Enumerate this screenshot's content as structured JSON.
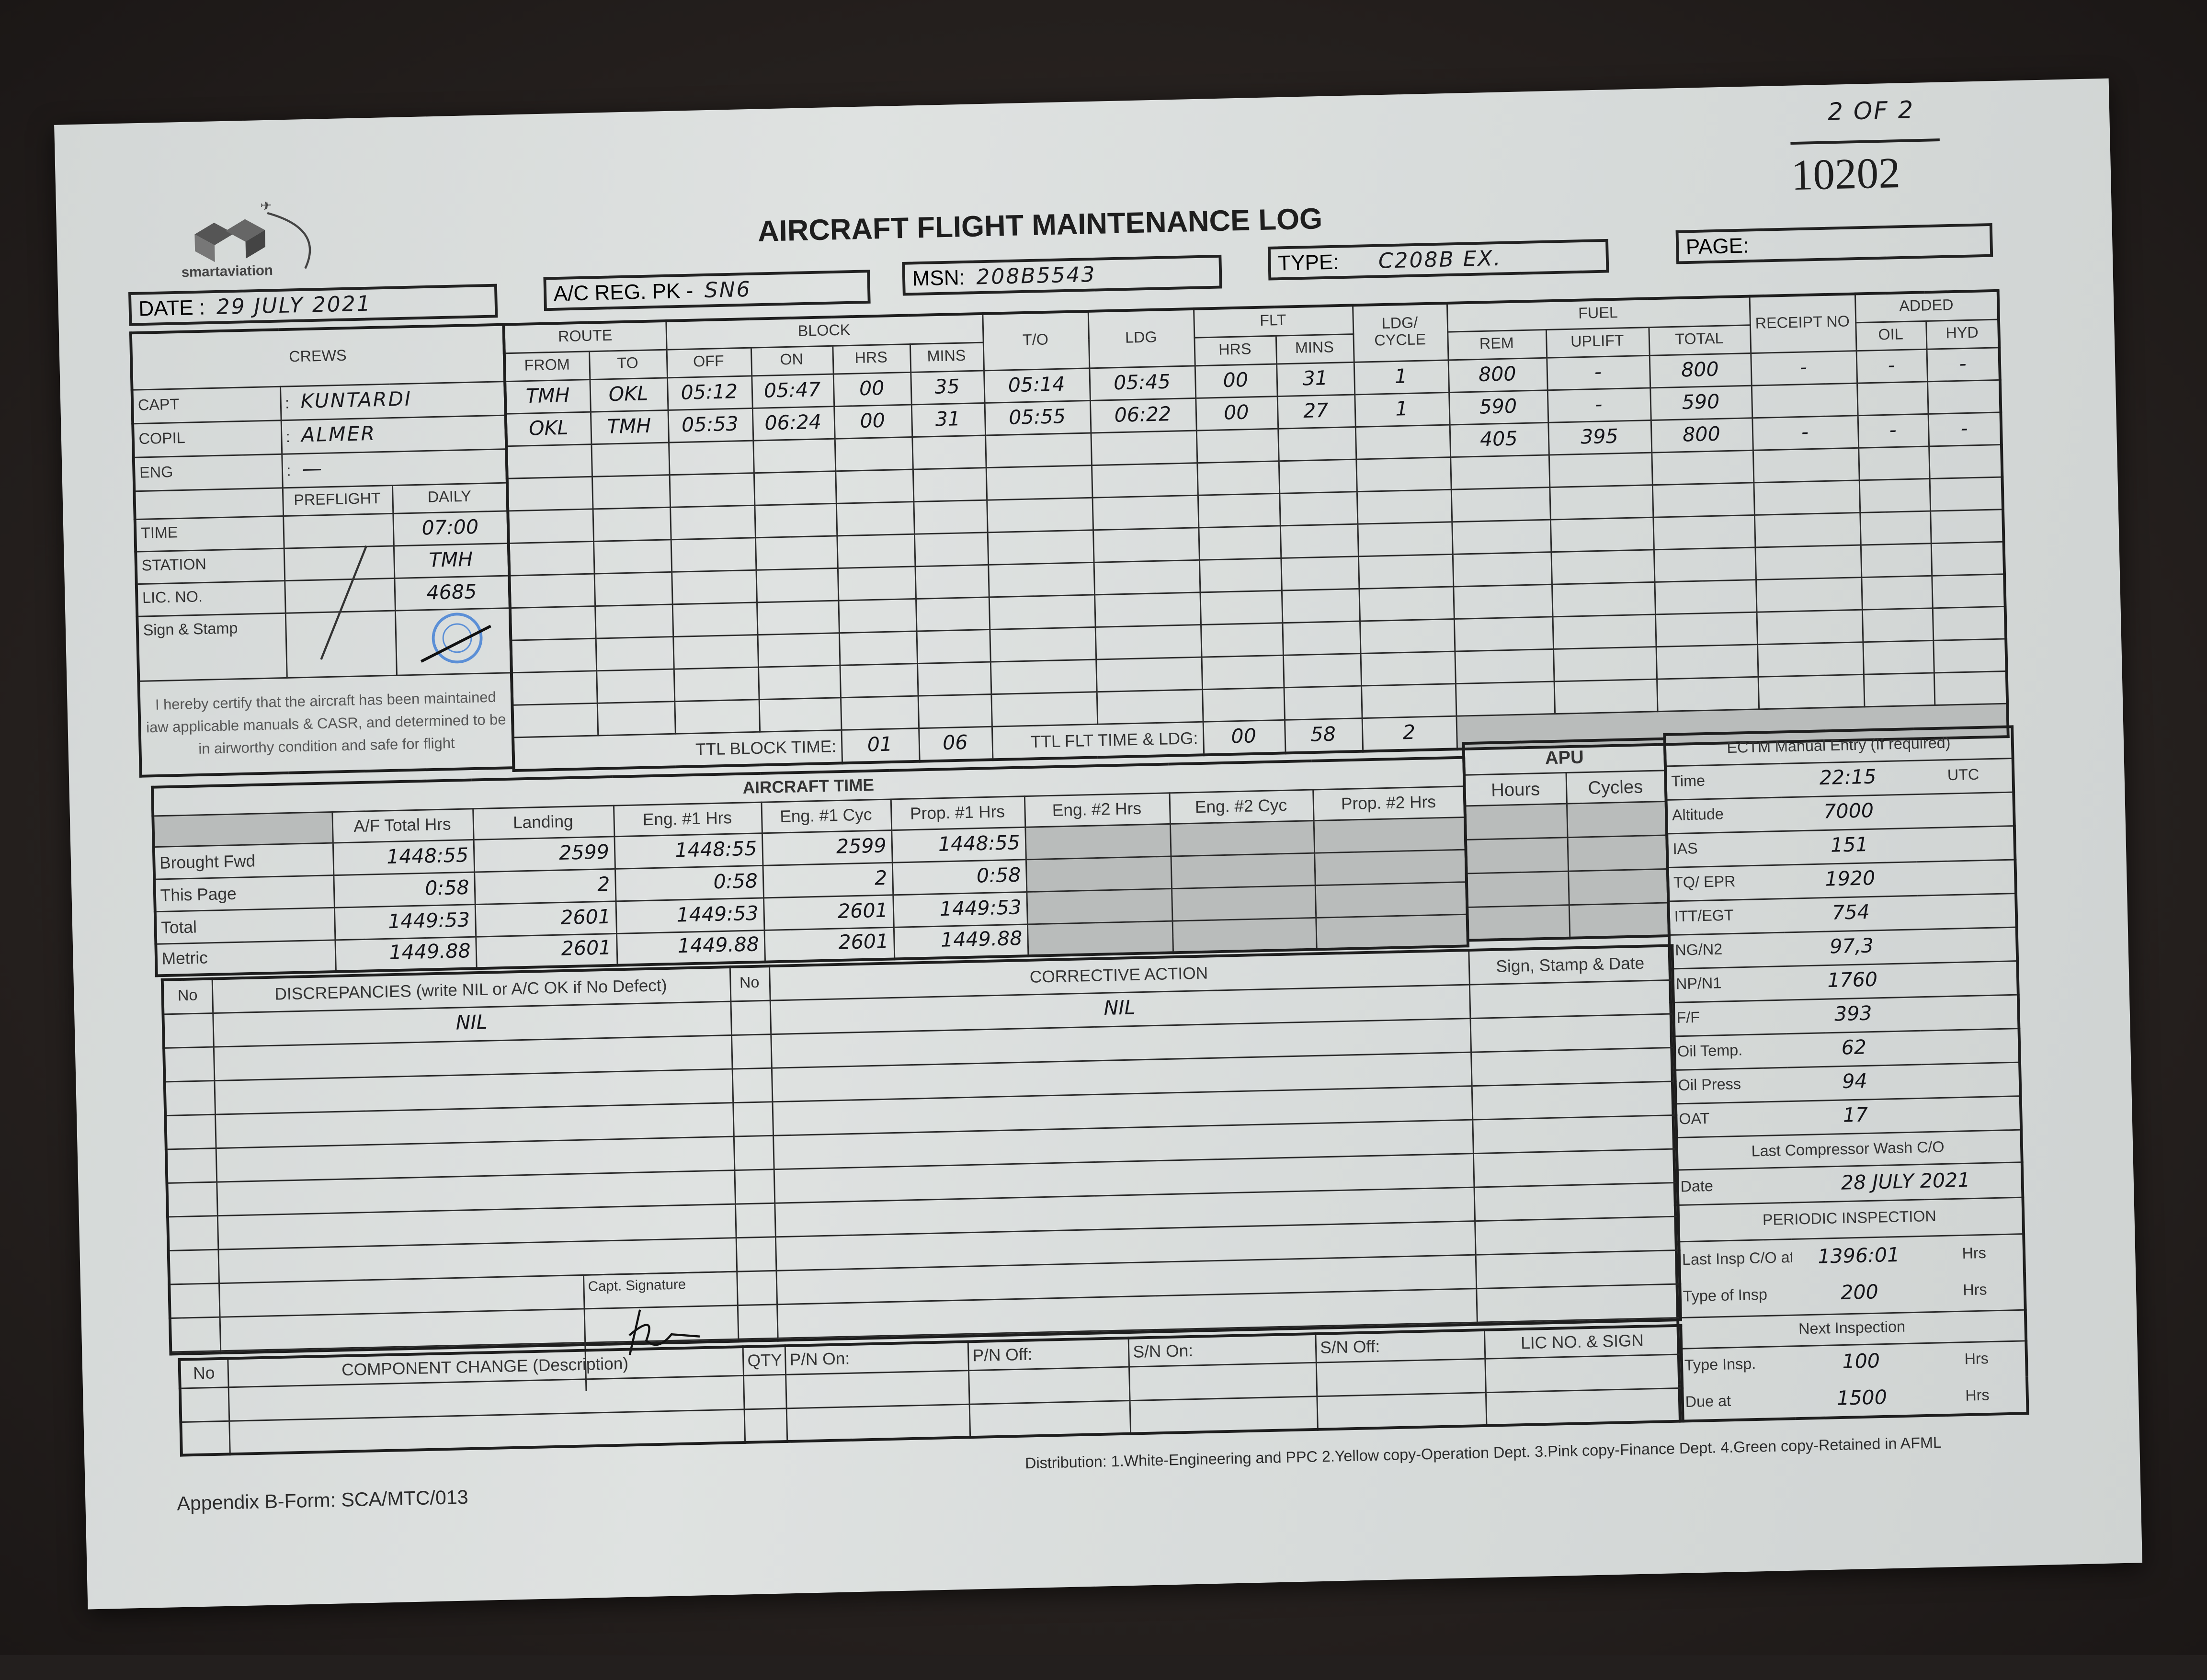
{
  "header": {
    "logo_text": "smartaviation",
    "title": "AIRCRAFT FLIGHT MAINTENANCE LOG",
    "page_count": "2 OF 2",
    "serial_number": "10202",
    "date_label": "DATE :",
    "date_value": "29 JULY 2021",
    "reg_label": "A/C REG. PK -",
    "reg_value": "SN6",
    "msn_label": "MSN:",
    "msn_value": "208B5543",
    "type_label": "TYPE:",
    "type_value": "C208B EX.",
    "page_label": "PAGE:"
  },
  "crews": {
    "title": "CREWS",
    "rows": [
      {
        "label": "CAPT",
        "sep": ":",
        "value": "KUNTARDI"
      },
      {
        "label": "COPIL",
        "sep": ":",
        "value": "ALMER"
      },
      {
        "label": "ENG",
        "sep": ":",
        "value": "—"
      }
    ],
    "check_headers": [
      "PREFLIGHT",
      "DAILY"
    ],
    "checks": [
      {
        "label": "TIME",
        "preflight": "",
        "daily": "07:00"
      },
      {
        "label": "STATION",
        "preflight": "",
        "daily": "TMH"
      },
      {
        "label": "LIC. NO.",
        "preflight": "",
        "daily": "4685"
      },
      {
        "label": "Sign & Stamp",
        "preflight": "",
        "daily": ""
      }
    ],
    "certify": "I hereby certify that the aircraft has been maintained iaw applicable manuals & CASR, and determined to be in airworthy condition and safe for flight"
  },
  "flight_table": {
    "groups": {
      "route": "ROUTE",
      "block": "BLOCK",
      "to": "T/O",
      "ldg": "LDG",
      "flt": "FLT",
      "cycle": "LDG/ CYCLE",
      "fuel": "FUEL",
      "receipt": "RECEIPT NO",
      "added": "ADDED"
    },
    "subheaders": {
      "from": "FROM",
      "to": "TO",
      "off": "OFF",
      "on": "ON",
      "block_hrs": "HRS",
      "block_mins": "MINS",
      "flt_hrs": "HRS",
      "flt_mins": "MINS",
      "rem": "REM",
      "uplift": "UPLIFT",
      "total": "TOTAL",
      "oil": "OIL",
      "hyd": "HYD"
    },
    "rows": [
      [
        "TMH",
        "OKL",
        "05:12",
        "05:47",
        "00",
        "35",
        "05:14",
        "05:45",
        "00",
        "31",
        "1",
        "800",
        "-",
        "800",
        "-",
        "-",
        "-"
      ],
      [
        "OKL",
        "TMH",
        "05:53",
        "06:24",
        "00",
        "31",
        "05:55",
        "06:22",
        "00",
        "27",
        "1",
        "590",
        "-",
        "590",
        "",
        "",
        ""
      ],
      [
        "",
        "",
        "",
        "",
        "",
        "",
        "",
        "",
        "",
        "",
        "",
        "405",
        "395",
        "800",
        "-",
        "-",
        "-"
      ],
      [
        "",
        "",
        "",
        "",
        "",
        "",
        "",
        "",
        "",
        "",
        "",
        "",
        "",
        "",
        "",
        "",
        ""
      ],
      [
        "",
        "",
        "",
        "",
        "",
        "",
        "",
        "",
        "",
        "",
        "",
        "",
        "",
        "",
        "",
        "",
        ""
      ],
      [
        "",
        "",
        "",
        "",
        "",
        "",
        "",
        "",
        "",
        "",
        "",
        "",
        "",
        "",
        "",
        "",
        ""
      ],
      [
        "",
        "",
        "",
        "",
        "",
        "",
        "",
        "",
        "",
        "",
        "",
        "",
        "",
        "",
        "",
        "",
        ""
      ],
      [
        "",
        "",
        "",
        "",
        "",
        "",
        "",
        "",
        "",
        "",
        "",
        "",
        "",
        "",
        "",
        "",
        ""
      ],
      [
        "",
        "",
        "",
        "",
        "",
        "",
        "",
        "",
        "",
        "",
        "",
        "",
        "",
        "",
        "",
        "",
        ""
      ],
      [
        "",
        "",
        "",
        "",
        "",
        "",
        "",
        "",
        "",
        "",
        "",
        "",
        "",
        "",
        "",
        "",
        ""
      ],
      [
        "",
        "",
        "",
        "",
        "",
        "",
        "",
        "",
        "",
        "",
        "",
        "",
        "",
        "",
        "",
        "",
        ""
      ]
    ],
    "ttl_block_label": "TTL BLOCK TIME:",
    "ttl_block_hrs": "01",
    "ttl_block_mins": "06",
    "ttl_flt_label": "TTL FLT TIME & LDG:",
    "ttl_flt_hrs": "00",
    "ttl_flt_mins": "58",
    "ttl_ldg": "2"
  },
  "aircraft_time": {
    "title": "AIRCRAFT TIME",
    "columns": [
      "A/F Total Hrs",
      "Landing",
      "Eng. #1 Hrs",
      "Eng. #1 Cyc",
      "Prop. #1 Hrs",
      "Eng. #2 Hrs",
      "Eng. #2 Cyc",
      "Prop. #2 Hrs"
    ],
    "rows": [
      {
        "label": "Brought Fwd",
        "values": [
          "1448:55",
          "2599",
          "1448:55",
          "2599",
          "1448:55",
          "",
          "",
          ""
        ]
      },
      {
        "label": "This Page",
        "values": [
          "0:58",
          "2",
          "0:58",
          "2",
          "0:58",
          "",
          "",
          ""
        ]
      },
      {
        "label": "Total",
        "values": [
          "1449:53",
          "2601",
          "1449:53",
          "2601",
          "1449:53",
          "",
          "",
          ""
        ]
      },
      {
        "label": "Metric",
        "values": [
          "1449.88",
          "2601",
          "1449.88",
          "2601",
          "1449.88",
          "",
          "",
          ""
        ]
      }
    ]
  },
  "apu": {
    "title": "APU",
    "hours_label": "Hours",
    "cycles_label": "Cycles"
  },
  "ectm": {
    "title": "ECTM Manual Entry (If required)",
    "rows": [
      {
        "label": "Time",
        "value": "22:15",
        "unit": "UTC"
      },
      {
        "label": "Altitude",
        "value": "7000",
        "unit": ""
      },
      {
        "label": "IAS",
        "value": "151",
        "unit": ""
      },
      {
        "label": "TQ/ EPR",
        "value": "1920",
        "unit": ""
      },
      {
        "label": "ITT/EGT",
        "value": "754",
        "unit": ""
      },
      {
        "label": "NG/N2",
        "value": "97,3",
        "unit": ""
      },
      {
        "label": "NP/N1",
        "value": "1760",
        "unit": ""
      },
      {
        "label": "F/F",
        "value": "393",
        "unit": ""
      },
      {
        "label": "Oil Temp.",
        "value": "62",
        "unit": ""
      },
      {
        "label": "Oil Press",
        "value": "94",
        "unit": ""
      },
      {
        "label": "OAT",
        "value": "17",
        "unit": ""
      }
    ],
    "wash_title": "Last Compressor Wash C/O",
    "wash_date_label": "Date",
    "wash_date_value": "28 JULY 2021",
    "periodic_title": "PERIODIC INSPECTION",
    "last_insp_label": "Last Insp C/O at",
    "last_insp_value": "1396:01",
    "type_insp_label": "Type of Insp",
    "type_insp_value": "200",
    "next_title": "Next Inspection",
    "next_type_label": "Type Insp.",
    "next_type_value": "100",
    "due_label": "Due at",
    "due_value": "1500",
    "hrs_unit": "Hrs"
  },
  "discrepancies": {
    "no_label": "No",
    "title": "DISCREPANCIES (write NIL or A/C OK if No Defect)",
    "value": "NIL",
    "corrective_no_label": "No",
    "corrective_title": "CORRECTIVE ACTION",
    "corrective_value": "NIL",
    "sign_title": "Sign, Stamp & Date",
    "capt_signature_label": "Capt. Signature"
  },
  "component_change": {
    "columns": [
      "No",
      "COMPONENT CHANGE (Description)",
      "QTY",
      "P/N On:",
      "P/N Off:",
      "S/N On:",
      "S/N Off:",
      "LIC NO. & SIGN"
    ]
  },
  "footer": {
    "form_id": "Appendix B-Form: SCA/MTC/013",
    "distribution": "Distribution: 1.White-Engineering and PPC  2.Yellow copy-Operation Dept.  3.Pink copy-Finance Dept.  4.Green copy-Retained in AFML"
  },
  "colors": {
    "stamp": "#5b8fd6",
    "ink": "#15151a",
    "paper": "#dcdfde",
    "background": "#231f1e"
  }
}
